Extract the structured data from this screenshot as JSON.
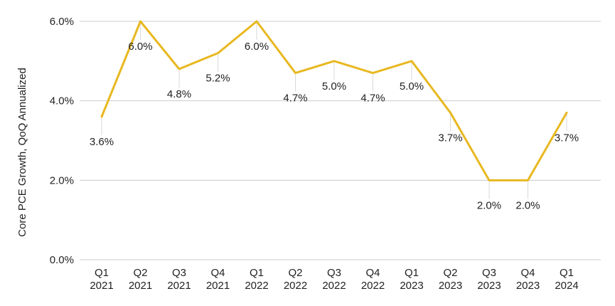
{
  "chart_data": {
    "type": "line",
    "title": "",
    "ylabel": "Core PCE Growth, QoQ Annualized",
    "xlabel": "",
    "categories": [
      [
        "Q1",
        "2021"
      ],
      [
        "Q2",
        "2021"
      ],
      [
        "Q3",
        "2021"
      ],
      [
        "Q4",
        "2021"
      ],
      [
        "Q1",
        "2022"
      ],
      [
        "Q2",
        "2022"
      ],
      [
        "Q3",
        "2022"
      ],
      [
        "Q4",
        "2022"
      ],
      [
        "Q1",
        "2023"
      ],
      [
        "Q2",
        "2023"
      ],
      [
        "Q3",
        "2023"
      ],
      [
        "Q4",
        "2023"
      ],
      [
        "Q1",
        "2024"
      ]
    ],
    "series": [
      {
        "color": "#E8B820",
        "values": [
          3.6,
          6.0,
          4.8,
          5.2,
          6.0,
          4.7,
          5.0,
          4.7,
          5.0,
          3.7,
          2.0,
          2.0,
          3.7
        ],
        "labels": [
          "3.6%",
          "6.0%",
          "4.8%",
          "5.2%",
          "6.0%",
          "4.7%",
          "5.0%",
          "4.7%",
          "5.0%",
          "3.7%",
          "2.0%",
          "2.0%",
          "3.7%"
        ]
      }
    ],
    "ylim": [
      0,
      6
    ],
    "yticks": [
      0,
      2,
      4,
      6
    ],
    "ytick_labels": [
      "0.0%",
      "2.0%",
      "4.0%",
      "6.0%"
    ],
    "grid": true,
    "grid_color": "#cccccc",
    "legend": false
  }
}
